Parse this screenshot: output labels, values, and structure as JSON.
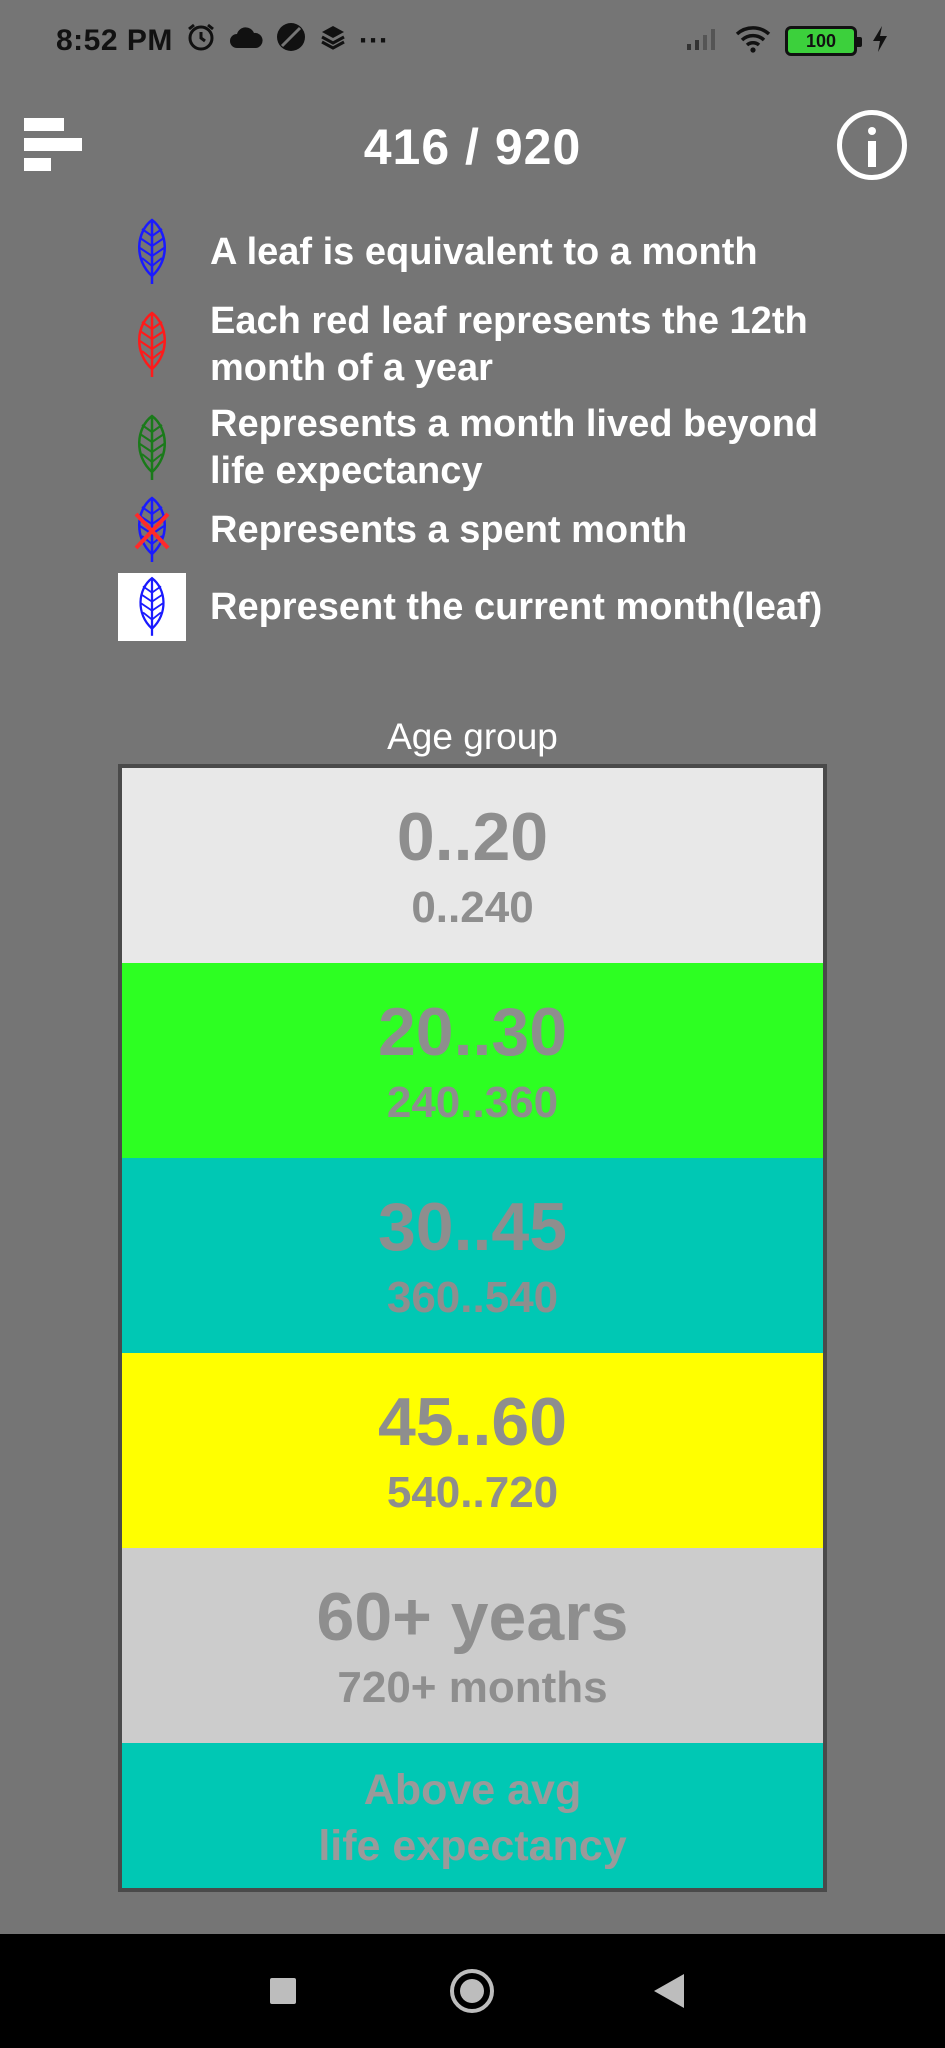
{
  "status_bar": {
    "time": "8:52 PM",
    "more": "···",
    "battery": "100",
    "icons": [
      "alarm-icon",
      "cloud-icon",
      "circle-slash-icon",
      "layers-icon",
      "signal-icon",
      "wifi-icon",
      "battery-icon",
      "charging-icon"
    ]
  },
  "header": {
    "counter": "416 / 920",
    "menu_icon": "menu-icon",
    "info_icon": "info-icon"
  },
  "legend": {
    "items": [
      {
        "text": "A leaf is equivalent to a month",
        "icon": "blue-leaf-icon",
        "color": "#1a1aff"
      },
      {
        "text": "Each red leaf represents the 12th month of a year",
        "icon": "red-leaf-icon",
        "color": "#ff1a1a"
      },
      {
        "text": "Represents a month lived beyond life expectancy",
        "icon": "green-leaf-icon",
        "color": "#1a7a1a"
      },
      {
        "text": "Represents a spent month",
        "icon": "crossed-leaf-icon",
        "color": "#1a1aff"
      },
      {
        "text": "Represent the current month(leaf)",
        "icon": "current-leaf-icon",
        "color": "#1a1aff"
      }
    ]
  },
  "age_group": {
    "title": "Age group",
    "rows": [
      {
        "years": "0..20",
        "months": "0..240",
        "color": "#e8e8e8"
      },
      {
        "years": "20..30",
        "months": "240..360",
        "color": "#2dff22"
      },
      {
        "years": "30..45",
        "months": "360..540",
        "color": "#00c8b4"
      },
      {
        "years": "45..60",
        "months": "540..720",
        "color": "#ffff00"
      },
      {
        "years": "60+ years",
        "months": "720+ months",
        "color": "#cccccc"
      }
    ],
    "last_row": {
      "line1": "Above avg",
      "line2": "life expectancy",
      "color": "#00c8b4"
    }
  }
}
